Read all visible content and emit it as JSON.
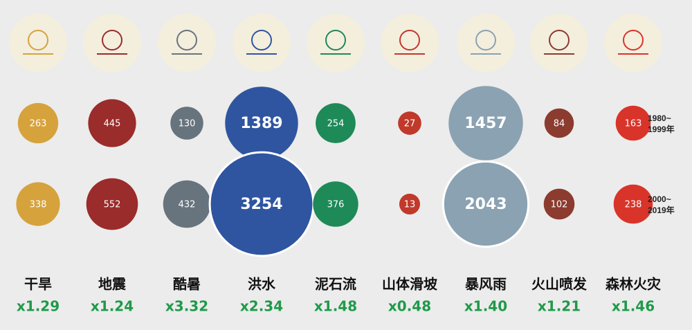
{
  "chart_data": {
    "type": "bubble",
    "categories": [
      "干旱",
      "地震",
      "酷暑",
      "洪水",
      "泥石流",
      "山体滑坡",
      "暴风雨",
      "火山喷发",
      "森林火灾"
    ],
    "colors": [
      "#d6a23c",
      "#9a2c2b",
      "#67747d",
      "#2f55a0",
      "#1d8a58",
      "#c0392b",
      "#8aa2b2",
      "#8c3b2f",
      "#d9342a"
    ],
    "series": [
      {
        "name": "1980~1999年",
        "values": [
          263,
          445,
          130,
          1389,
          254,
          27,
          1457,
          84,
          163
        ]
      },
      {
        "name": "2000~2019年",
        "values": [
          338,
          552,
          432,
          3254,
          376,
          13,
          2043,
          102,
          238
        ]
      }
    ],
    "ratios": [
      "x1.29",
      "x1.24",
      "x3.32",
      "x2.34",
      "x1.48",
      "x0.48",
      "x1.40",
      "x1.21",
      "x1.46"
    ]
  }
}
